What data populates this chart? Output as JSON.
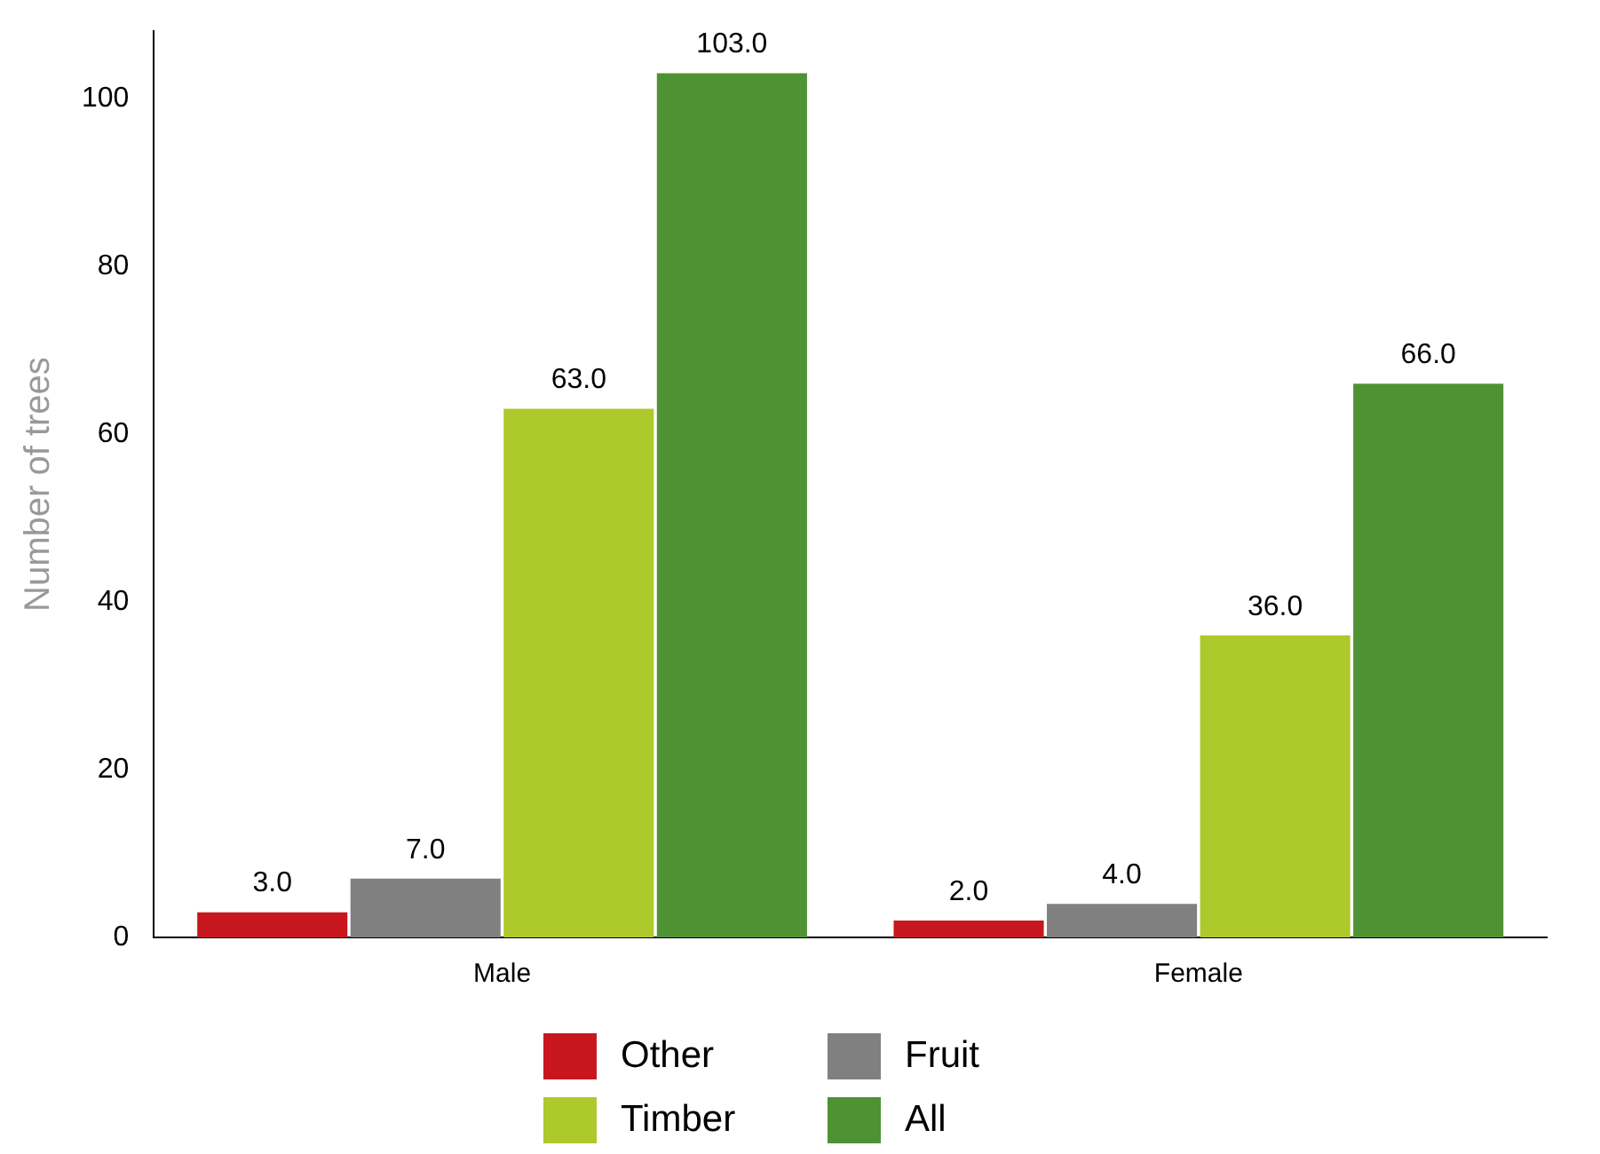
{
  "chart_data": {
    "type": "bar",
    "ylabel": "Number of trees",
    "categories": [
      "Male",
      "Female"
    ],
    "series": [
      {
        "name": "Other",
        "color": "#c8161e",
        "values": [
          3,
          2
        ],
        "value_labels": [
          "3.0",
          "2.0"
        ]
      },
      {
        "name": "Fruit",
        "color": "#808080",
        "values": [
          7,
          4
        ],
        "value_labels": [
          "7.0",
          "4.0"
        ]
      },
      {
        "name": "Timber",
        "color": "#adc92b",
        "values": [
          63,
          36
        ],
        "value_labels": [
          "63.0",
          "36.0"
        ]
      },
      {
        "name": "All",
        "color": "#4e9234",
        "values": [
          103,
          66
        ],
        "value_labels": [
          "103.0",
          "66.0"
        ]
      }
    ],
    "ylim": [
      0,
      108
    ],
    "yticks": [
      0,
      20,
      40,
      60,
      80,
      100
    ],
    "grid": false,
    "legend": "bottom"
  }
}
